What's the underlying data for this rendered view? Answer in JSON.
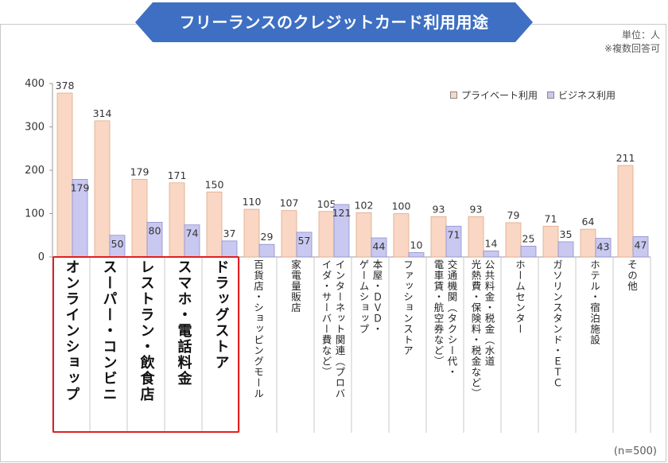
{
  "title": "フリーランスのクレジットカード利用用途",
  "unit_lines": [
    "単位：人",
    "※複数回答可"
  ],
  "footnote": "(n=500)",
  "colors": {
    "banner": "#3e6fc3",
    "private": "#f9d7c4",
    "business": "#c8c8f0",
    "highlight": "#e02020"
  },
  "chart_data": {
    "type": "bar",
    "ylim": [
      0,
      400
    ],
    "yticks": [
      0,
      100,
      200,
      300,
      400
    ],
    "legend_position": "top-right",
    "categories": [
      "オンラインショップ",
      "スーパー・コンビニ",
      "レストラン・飲食店",
      "スマホ・電話料金",
      "ドラッグストア",
      "百貨店・ショッピングモール",
      "家電量販店",
      "インターネット関連（プロバ\nイダ・サーバー費など）",
      "本屋・ＤＶＤ・\nゲームショップ",
      "ファッションストア",
      "交通機関（タクシー代・\n電車賃・航空券など）",
      "公共料金・税金（水道\n光熱費・保険料・税金など）",
      "ホームセンター",
      "ガソリンスタンド・ＥＴＣ",
      "ホテル・宿泊施設",
      "その他"
    ],
    "series": [
      {
        "name": "プライベート利用",
        "values": [
          378,
          314,
          179,
          171,
          150,
          110,
          107,
          105,
          102,
          100,
          93,
          93,
          79,
          71,
          64,
          211
        ]
      },
      {
        "name": "ビジネス利用",
        "values": [
          179,
          50,
          80,
          74,
          37,
          29,
          57,
          121,
          44,
          10,
          71,
          14,
          25,
          35,
          43,
          47
        ]
      }
    ],
    "highlighted_categories": 5
  }
}
